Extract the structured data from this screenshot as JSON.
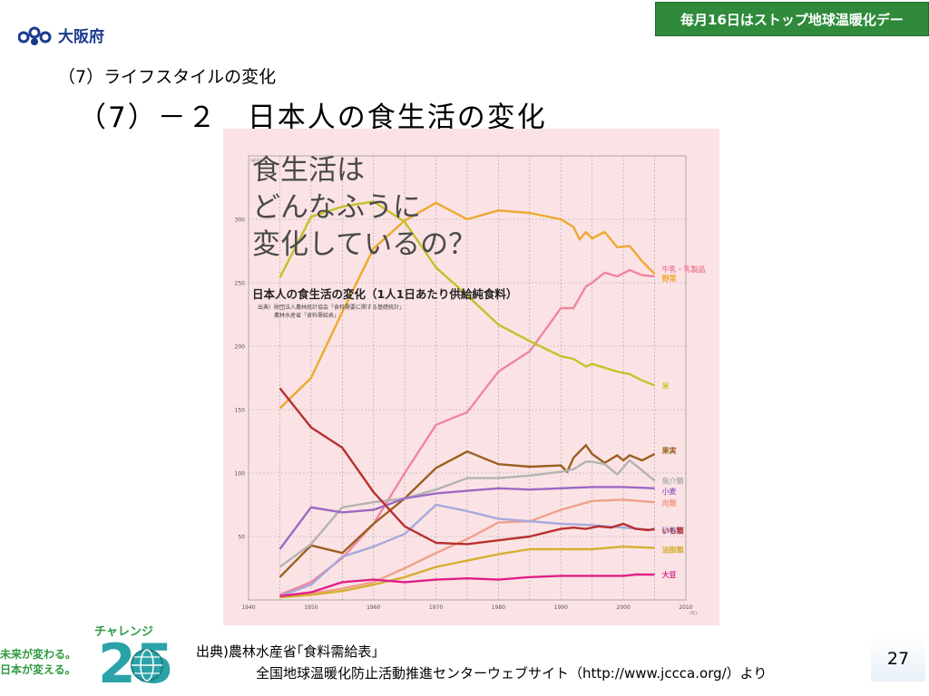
{
  "header": {
    "logo_text": "大阪府",
    "banner_text": "毎月16日はストップ地球温暖化デー",
    "subtitle": "（7）ライフスタイルの変化",
    "title": "（7）－２　日本人の食生活の変化"
  },
  "chart_caption": {
    "heading": "食生活は\nどんなふうに\n変化しているの？",
    "source": "出典）財団法人農林統計協会「食料需要に関する基礎統計」\n　　　農林水産省「食料需給表」"
  },
  "chart_data": {
    "type": "line",
    "title": "日本人の食生活の変化（1人1日あたり供給純食料）",
    "xlabel": "(年)",
    "ylabel": "(g/人)",
    "xlim": [
      1940,
      2010
    ],
    "ylim": [
      0,
      350
    ],
    "x_ticks": [
      1940,
      1950,
      1960,
      1970,
      1980,
      1990,
      2000,
      2010
    ],
    "y_ticks": [
      50,
      100,
      150,
      200,
      250,
      300
    ],
    "grid": true,
    "legend_placement": "right (inline labels)",
    "series": [
      {
        "name": "牛乳・乳製品",
        "color": "#ef86a0",
        "x": [
          1945,
          1950,
          1955,
          1960,
          1965,
          1970,
          1975,
          1980,
          1985,
          1990,
          1992,
          1994,
          1995,
          1997,
          1999,
          2001,
          2003,
          2005
        ],
        "y": [
          4,
          14,
          33,
          60,
          100,
          138,
          148,
          180,
          196,
          230,
          230,
          247,
          250,
          258,
          255,
          260,
          256,
          255
        ]
      },
      {
        "name": "野菜",
        "color": "#efa830",
        "x": [
          1945,
          1950,
          1955,
          1960,
          1965,
          1970,
          1975,
          1980,
          1985,
          1990,
          1992,
          1993,
          1994,
          1995,
          1997,
          1999,
          2001,
          2003,
          2005
        ],
        "y": [
          151,
          175,
          227,
          277,
          299,
          313,
          300,
          307,
          305,
          300,
          294,
          284,
          290,
          285,
          290,
          278,
          279,
          267,
          257
        ]
      },
      {
        "name": "米",
        "color": "#c2c22a",
        "x": [
          1945,
          1950,
          1955,
          1960,
          1965,
          1970,
          1975,
          1980,
          1985,
          1990,
          1992,
          1994,
          1995,
          1997,
          1999,
          2001,
          2003,
          2005
        ],
        "y": [
          254,
          302,
          310,
          314,
          298,
          262,
          240,
          217,
          204,
          192,
          190,
          184,
          186,
          183,
          180,
          178,
          173,
          169
        ]
      },
      {
        "name": "果実",
        "color": "#9a6020",
        "x": [
          1945,
          1950,
          1955,
          1960,
          1965,
          1970,
          1975,
          1980,
          1985,
          1990,
          1991,
          1992,
          1994,
          1995,
          1997,
          1999,
          2000,
          2001,
          2003,
          2005
        ],
        "y": [
          18,
          43,
          37,
          60,
          80,
          104,
          117,
          107,
          105,
          106,
          101,
          112,
          122,
          115,
          108,
          114,
          110,
          114,
          110,
          115
        ]
      },
      {
        "name": "魚介類",
        "color": "#b3b3b3",
        "x": [
          1945,
          1950,
          1955,
          1960,
          1965,
          1970,
          1975,
          1980,
          1985,
          1990,
          1992,
          1994,
          1995,
          1997,
          1999,
          2001,
          2003,
          2005
        ],
        "y": [
          26,
          44,
          73,
          77,
          80,
          87,
          96,
          96,
          98,
          101,
          103,
          109,
          109,
          107,
          99,
          110,
          102,
          94
        ]
      },
      {
        "name": "小麦",
        "color": "#9c68c4",
        "x": [
          1945,
          1950,
          1955,
          1960,
          1965,
          1970,
          1975,
          1980,
          1985,
          1990,
          1995,
          2000,
          2005
        ],
        "y": [
          40,
          73,
          69,
          71,
          80,
          84,
          86,
          88,
          87,
          88,
          89,
          89,
          88
        ]
      },
      {
        "name": "肉類",
        "color": "#f0a08c",
        "x": [
          1945,
          1950,
          1955,
          1960,
          1965,
          1970,
          1975,
          1980,
          1985,
          1990,
          1995,
          2000,
          2005
        ],
        "y": [
          3,
          5,
          9,
          14,
          25,
          37,
          48,
          61,
          62,
          71,
          78,
          79,
          77
        ]
      },
      {
        "name": "砂糖類",
        "color": "#a8a8dc",
        "x": [
          1945,
          1950,
          1955,
          1960,
          1965,
          1970,
          1975,
          1980,
          1985,
          1990,
          1995,
          2000,
          2005
        ],
        "y": [
          3,
          12,
          34,
          42,
          52,
          75,
          70,
          64,
          62,
          60,
          59,
          57,
          55
        ]
      },
      {
        "name": "いも類",
        "color": "#b83030",
        "x": [
          1945,
          1950,
          1955,
          1960,
          1965,
          1970,
          1975,
          1980,
          1985,
          1990,
          1992,
          1994,
          1996,
          1998,
          2000,
          2002,
          2004,
          2005
        ],
        "y": [
          167,
          136,
          120,
          85,
          58,
          45,
          44,
          47,
          50,
          56,
          57,
          56,
          58,
          57,
          60,
          56,
          55,
          56
        ]
      },
      {
        "name": "油脂類",
        "color": "#d4b030",
        "x": [
          1945,
          1950,
          1955,
          1960,
          1965,
          1970,
          1975,
          1980,
          1985,
          1990,
          1995,
          2000,
          2005
        ],
        "y": [
          2,
          4,
          7,
          12,
          18,
          26,
          31,
          36,
          40,
          40,
          40,
          42,
          41
        ]
      },
      {
        "name": "大豆",
        "color": "#e0208a",
        "x": [
          1945,
          1950,
          1955,
          1960,
          1965,
          1970,
          1975,
          1980,
          1985,
          1990,
          1992,
          1994,
          1996,
          1998,
          2000,
          2002,
          2004,
          2005
        ],
        "y": [
          3,
          6,
          14,
          16,
          14,
          16,
          17,
          16,
          18,
          19,
          19,
          19,
          19,
          19,
          19,
          20,
          20,
          20
        ]
      }
    ]
  },
  "footer": {
    "challenge_label": "チャレンジ",
    "slogan": "未来が変わる。\n日本が変える。",
    "challenge_number": "25",
    "source_line1": "出典)農林水産省｢食料需給表｣",
    "source_line2": "全国地球温暖化防止活動推進センターウェブサイト（http://www.jccca.org/）より",
    "page_number": "27"
  }
}
